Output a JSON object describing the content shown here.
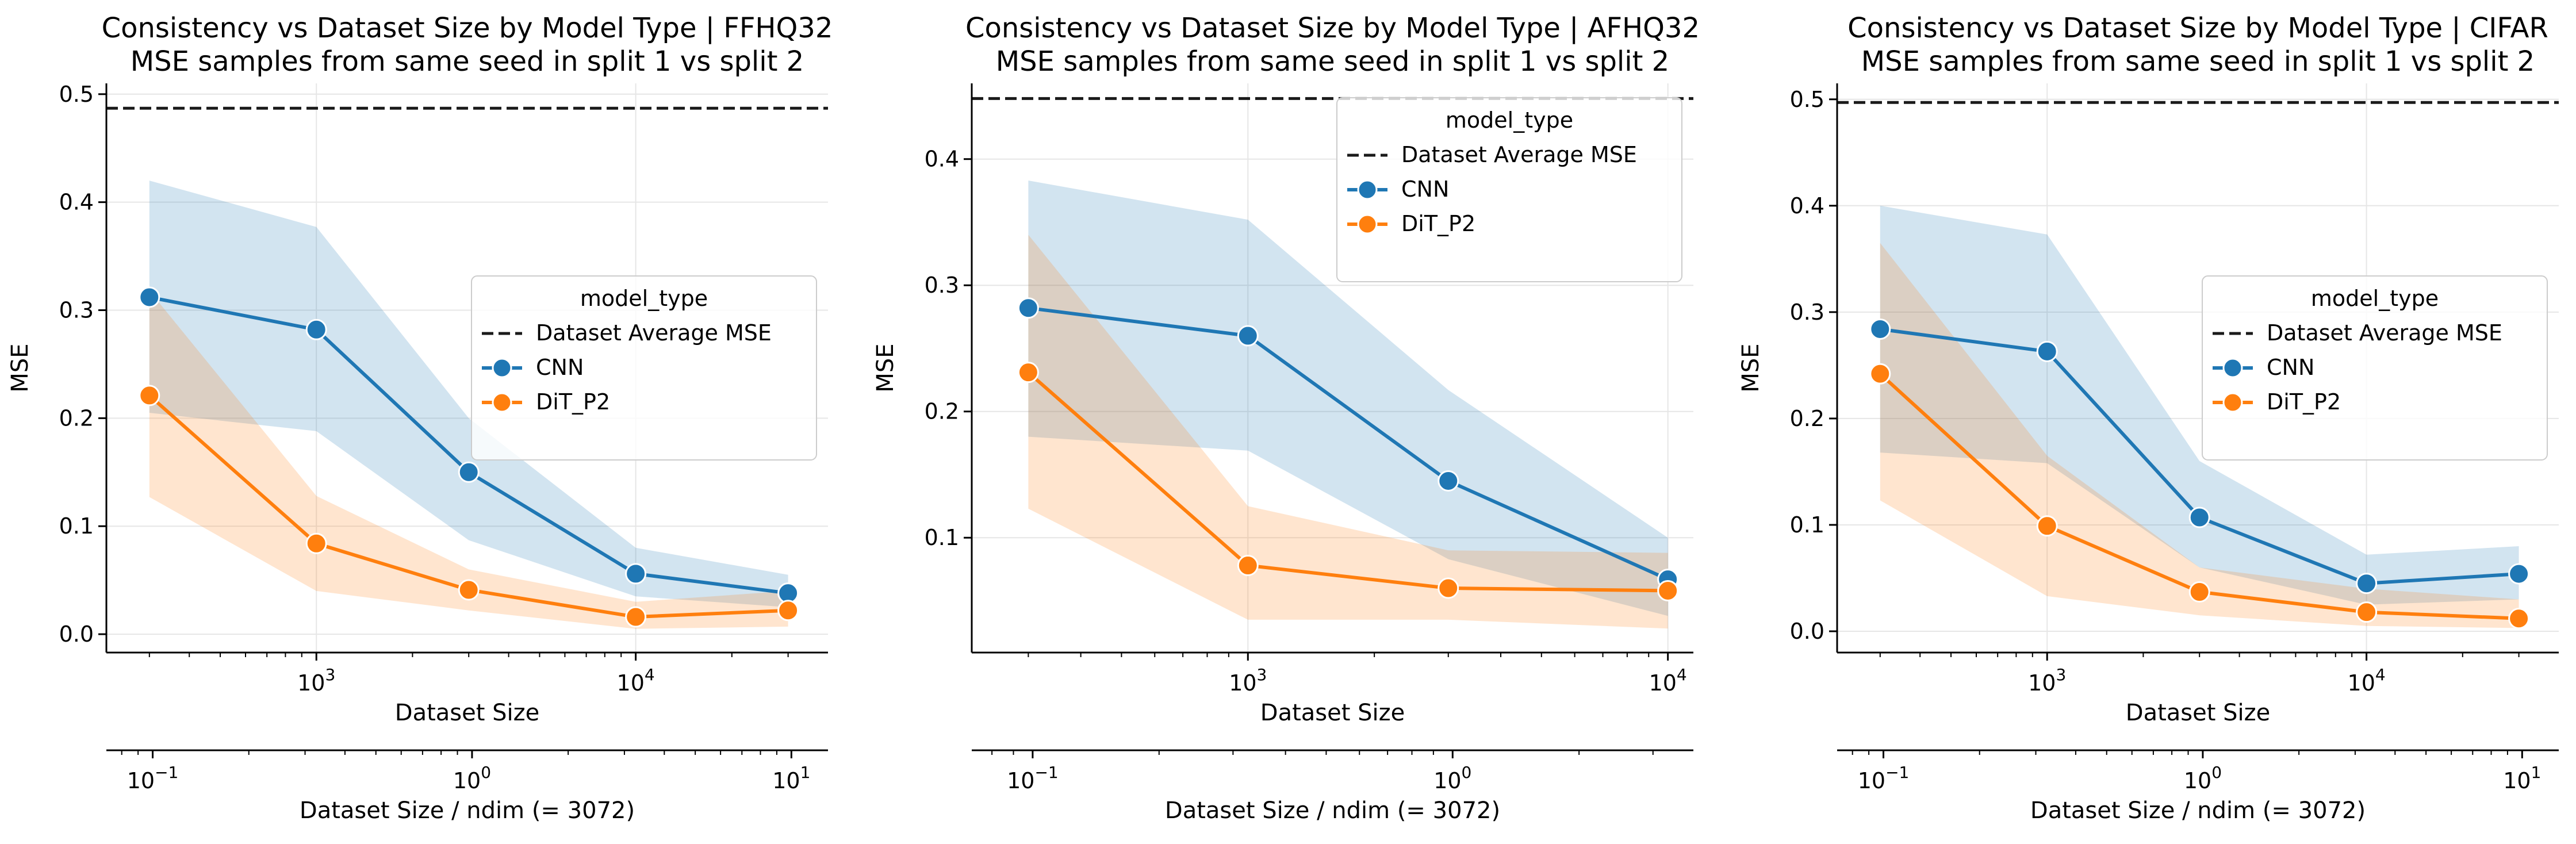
{
  "figure": {
    "description_free": true
  },
  "chart_data": [
    {
      "type": "line",
      "title": "Consistency vs Dataset Size by Model Type | FFHQ32",
      "subtitle": "MSE samples from same seed in split 1 vs split 2",
      "xlabel": "Dataset Size",
      "x2label": "Dataset Size / ndim (= 3072)",
      "ylabel": "MSE",
      "xscale": "log",
      "xlim": [
        220,
        40000
      ],
      "ylim": [
        -0.017,
        0.51
      ],
      "yticks": [
        0.0,
        0.1,
        0.2,
        0.3,
        0.4,
        0.5
      ],
      "ytick_labels": [
        "0.0",
        "0.1",
        "0.2",
        "0.3",
        "0.4",
        "0.5"
      ],
      "xticks": [
        1000,
        10000
      ],
      "xtick_labels": [
        "10^3",
        "10^4"
      ],
      "x2ticks": [
        0.1,
        1,
        10
      ],
      "x2tick_labels": [
        "10^-1",
        "10^0",
        "10^1"
      ],
      "ndim": 3072,
      "grid": true,
      "legend_position": "center-right",
      "legend_title": "model_type",
      "legend_entries": [
        "Dataset Average MSE",
        "CNN",
        "DiT_P2"
      ],
      "reference_line": {
        "name": "Dataset Average MSE",
        "y": 0.487
      },
      "x": [
        300,
        1000,
        3000,
        10000,
        30000
      ],
      "series": [
        {
          "name": "CNN",
          "color": "#1f77b4",
          "values": [
            0.312,
            0.282,
            0.15,
            0.056,
            0.038
          ],
          "ci_upper": [
            0.42,
            0.377,
            0.2,
            0.08,
            0.055
          ],
          "ci_lower": [
            0.205,
            0.188,
            0.087,
            0.035,
            0.025
          ]
        },
        {
          "name": "DiT_P2",
          "color": "#ff7f0e",
          "values": [
            0.221,
            0.084,
            0.041,
            0.016,
            0.022
          ],
          "ci_upper": [
            0.318,
            0.128,
            0.06,
            0.03,
            0.04
          ],
          "ci_lower": [
            0.127,
            0.04,
            0.022,
            0.005,
            0.007
          ]
        }
      ]
    },
    {
      "type": "line",
      "title": "Consistency vs Dataset Size by Model Type | AFHQ32",
      "subtitle": "MSE samples from same seed in split 1 vs split 2",
      "xlabel": "Dataset Size",
      "x2label": "Dataset Size / ndim (= 3072)",
      "ylabel": "MSE",
      "xscale": "log",
      "xlim": [
        220,
        11500
      ],
      "ylim": [
        0.009,
        0.46
      ],
      "yticks": [
        0.1,
        0.2,
        0.3,
        0.4
      ],
      "ytick_labels": [
        "0.1",
        "0.2",
        "0.3",
        "0.4"
      ],
      "xticks": [
        1000,
        10000
      ],
      "xtick_labels": [
        "10^3",
        "10^4"
      ],
      "x2ticks": [
        0.1,
        1
      ],
      "x2tick_labels": [
        "10^-1",
        "10^0"
      ],
      "ndim": 3072,
      "grid": true,
      "legend_position": "upper-right",
      "legend_title": "model_type",
      "legend_entries": [
        "Dataset Average MSE",
        "CNN",
        "DiT_P2"
      ],
      "reference_line": {
        "name": "Dataset Average MSE",
        "y": 0.448
      },
      "x": [
        300,
        1000,
        3000,
        10000
      ],
      "series": [
        {
          "name": "CNN",
          "color": "#1f77b4",
          "values": [
            0.282,
            0.26,
            0.145,
            0.067
          ],
          "ci_upper": [
            0.383,
            0.352,
            0.217,
            0.1
          ],
          "ci_lower": [
            0.18,
            0.169,
            0.083,
            0.038
          ]
        },
        {
          "name": "DiT_P2",
          "color": "#ff7f0e",
          "values": [
            0.231,
            0.078,
            0.06,
            0.058
          ],
          "ci_upper": [
            0.34,
            0.125,
            0.09,
            0.088
          ],
          "ci_lower": [
            0.123,
            0.035,
            0.035,
            0.028
          ]
        }
      ]
    },
    {
      "type": "line",
      "title": "Consistency vs Dataset Size by Model Type | CIFAR",
      "subtitle": "MSE samples from same seed in split 1 vs split 2",
      "xlabel": "Dataset Size",
      "x2label": "Dataset Size / ndim (= 3072)",
      "ylabel": "MSE",
      "xscale": "log",
      "xlim": [
        220,
        40000
      ],
      "ylim": [
        -0.02,
        0.515
      ],
      "yticks": [
        0.0,
        0.1,
        0.2,
        0.3,
        0.4,
        0.5
      ],
      "ytick_labels": [
        "0.0",
        "0.1",
        "0.2",
        "0.3",
        "0.4",
        "0.5"
      ],
      "xticks": [
        1000,
        10000
      ],
      "xtick_labels": [
        "10^3",
        "10^4"
      ],
      "x2ticks": [
        0.1,
        1,
        10
      ],
      "x2tick_labels": [
        "10^-1",
        "10^0",
        "10^1"
      ],
      "ndim": 3072,
      "grid": true,
      "legend_position": "center-right",
      "legend_title": "model_type",
      "legend_entries": [
        "Dataset Average MSE",
        "CNN",
        "DiT_P2"
      ],
      "reference_line": {
        "name": "Dataset Average MSE",
        "y": 0.497
      },
      "x": [
        300,
        1000,
        3000,
        10000,
        30000
      ],
      "series": [
        {
          "name": "CNN",
          "color": "#1f77b4",
          "values": [
            0.284,
            0.263,
            0.107,
            0.045,
            0.054
          ],
          "ci_upper": [
            0.4,
            0.373,
            0.16,
            0.072,
            0.08
          ],
          "ci_lower": [
            0.168,
            0.158,
            0.06,
            0.025,
            0.03
          ]
        },
        {
          "name": "DiT_P2",
          "color": "#ff7f0e",
          "values": [
            0.242,
            0.099,
            0.037,
            0.018,
            0.012
          ],
          "ci_upper": [
            0.365,
            0.165,
            0.06,
            0.04,
            0.03
          ],
          "ci_lower": [
            0.123,
            0.033,
            0.015,
            0.005,
            0.003
          ]
        }
      ]
    }
  ]
}
